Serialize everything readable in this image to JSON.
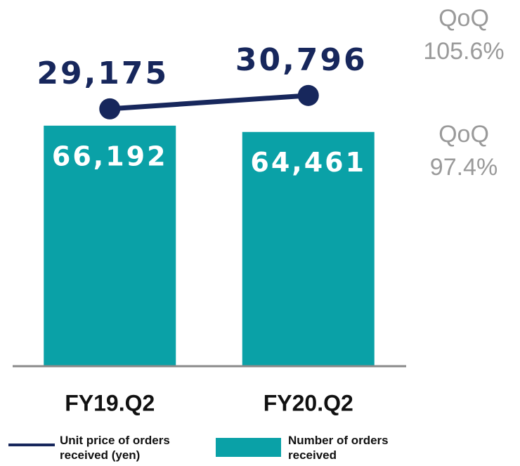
{
  "chart_data": {
    "type": "combo",
    "categories": [
      "FY19.Q2",
      "FY20.Q2"
    ],
    "series": [
      {
        "name": "Number of orders received",
        "type": "bar",
        "color": "#0aa1a7",
        "values": [
          66192,
          64461
        ],
        "value_labels": [
          "66,192",
          "64,461"
        ]
      },
      {
        "name": "Unit price of orders received (yen)",
        "type": "line",
        "axis": "y2",
        "color": "#17275c",
        "values": [
          29175,
          30796
        ],
        "value_labels": [
          "29,175",
          "30,796"
        ]
      }
    ],
    "ylim": [
      0,
      100000
    ],
    "y2lim": [
      20000,
      35000
    ],
    "annotations": [
      {
        "lines": [
          "QoQ",
          "105.6%"
        ]
      },
      {
        "lines": [
          "QoQ",
          "97.4%"
        ]
      }
    ]
  }
}
